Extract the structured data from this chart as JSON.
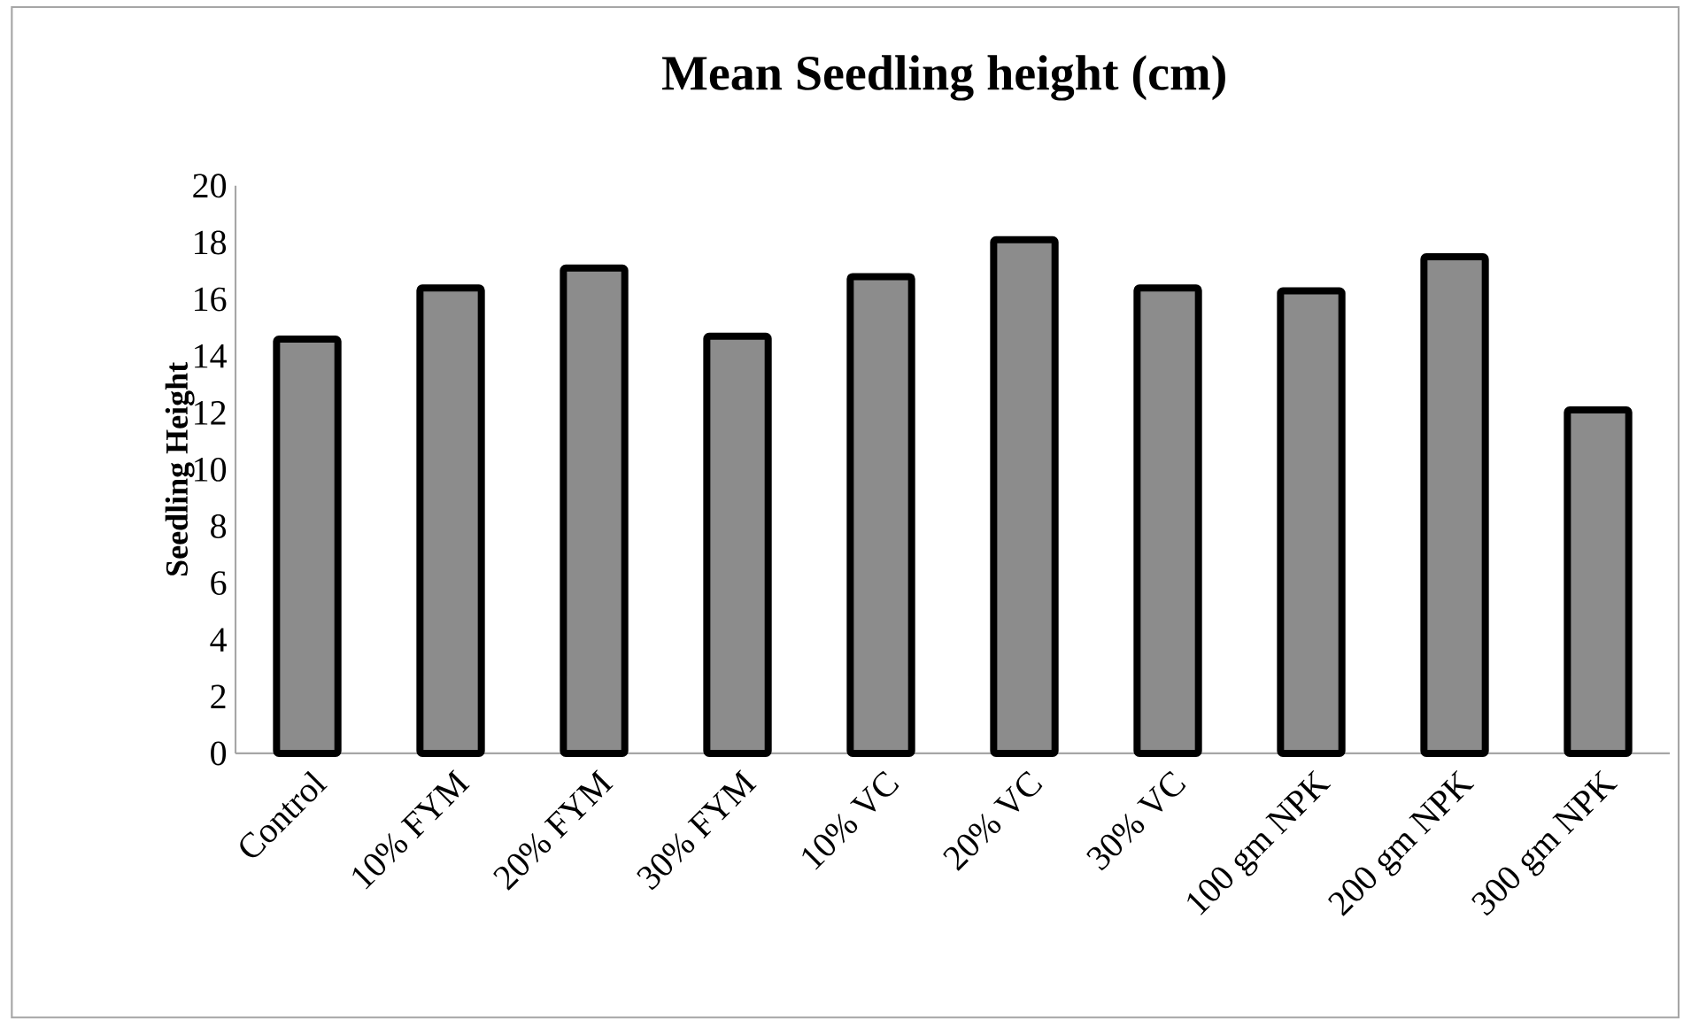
{
  "chart_data": {
    "type": "bar",
    "title": "Mean Seedling height (cm)",
    "ylabel": "Seedling Height",
    "categories": [
      "Control",
      "10% FYM",
      "20% FYM",
      "30% FYM",
      "10% VC",
      "20% VC",
      "30% VC",
      "100 gm NPK",
      "200 gm NPK",
      "300 gm NPK"
    ],
    "values": [
      14.6,
      16.4,
      17.1,
      14.7,
      16.8,
      18.1,
      16.4,
      16.3,
      17.5,
      12.1
    ],
    "color": "#000000",
    "ylim": [
      0,
      20
    ],
    "yticks": [
      0,
      2,
      4,
      6,
      8,
      10,
      12,
      14,
      16,
      18,
      20
    ],
    "grid": false
  }
}
